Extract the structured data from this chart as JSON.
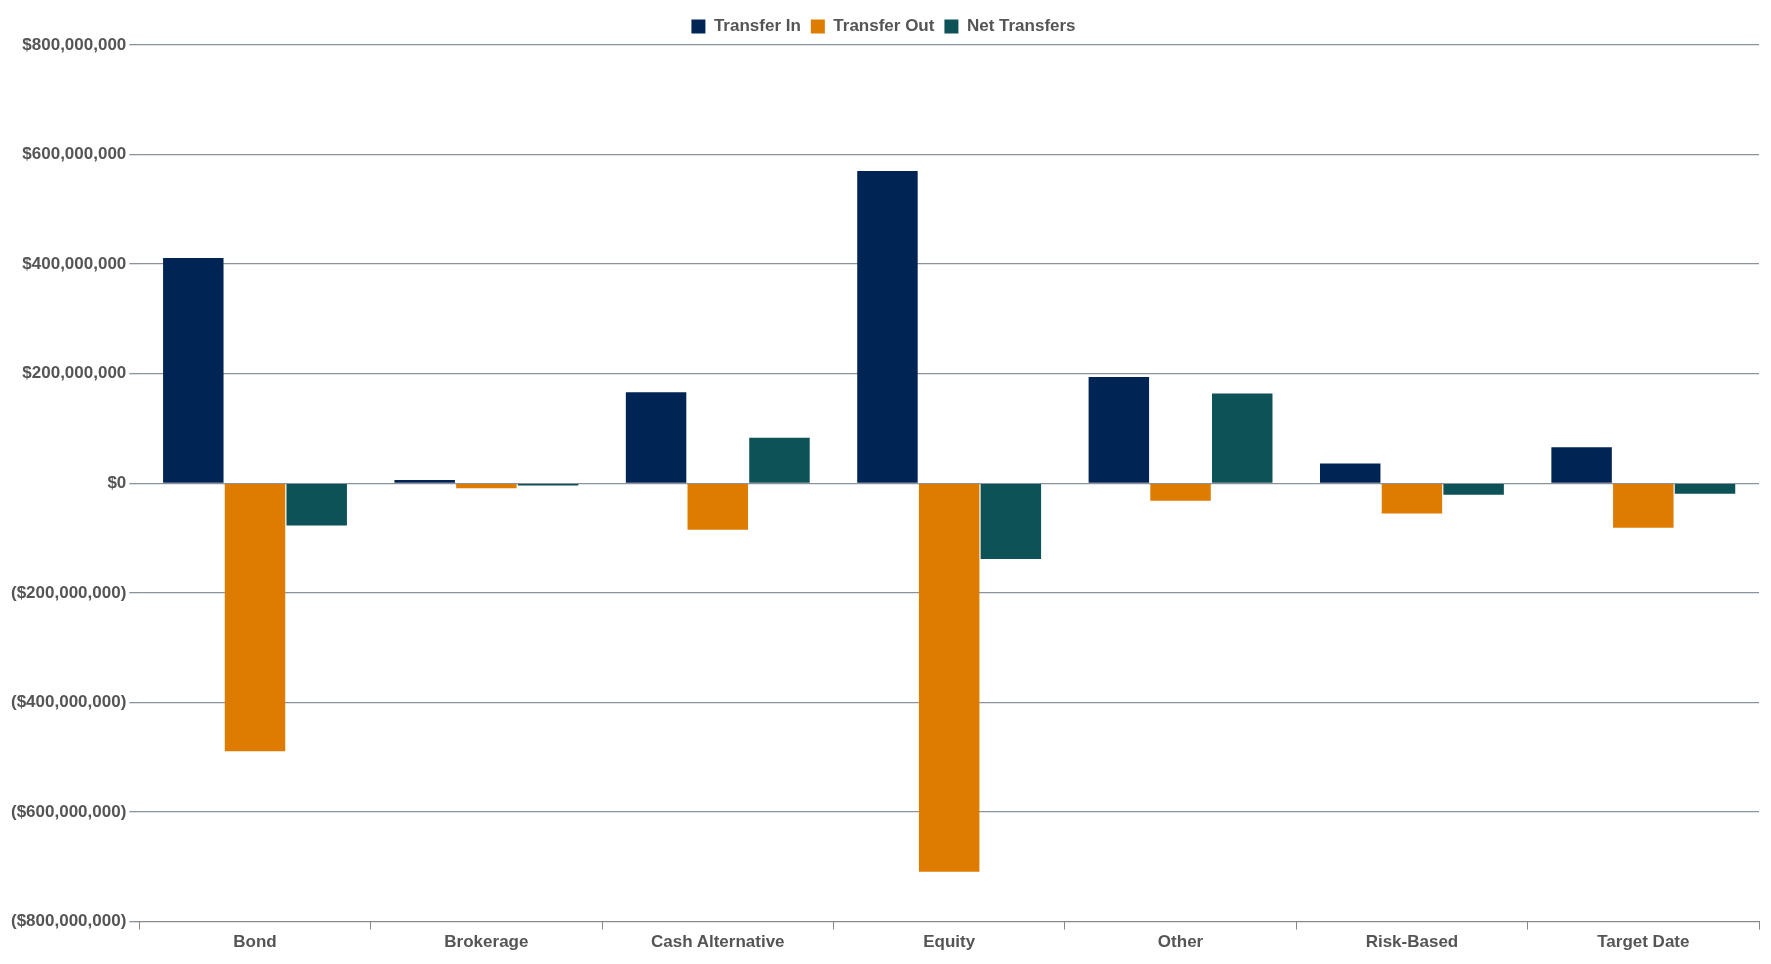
{
  "chart_data": {
    "type": "bar",
    "categories": [
      "Bond",
      "Brokerage",
      "Cash Alternative",
      "Equity",
      "Other",
      "Risk-Based",
      "Target Date"
    ],
    "series": [
      {
        "name": "Transfer In",
        "color": "#002554",
        "values": [
          411000000,
          6000000,
          166000000,
          570000000,
          194000000,
          36000000,
          66000000
        ]
      },
      {
        "name": "Transfer Out",
        "color": "#dd7c00",
        "values": [
          -489000000,
          -9000000,
          -85000000,
          -709000000,
          -32000000,
          -55000000,
          -81000000
        ]
      },
      {
        "name": "Net Transfers",
        "color": "#0d5257",
        "values": [
          -77000000,
          -4000000,
          83000000,
          -138000000,
          164000000,
          -21000000,
          -19000000
        ]
      }
    ],
    "ylim": [
      -800000000,
      800000000
    ],
    "yticks": [
      {
        "value": -800000000,
        "label": "($800,000,000)"
      },
      {
        "value": -600000000,
        "label": "($600,000,000)"
      },
      {
        "value": -400000000,
        "label": "($400,000,000)"
      },
      {
        "value": -200000000,
        "label": "($200,000,000)"
      },
      {
        "value": 0,
        "label": "$0"
      },
      {
        "value": 200000000,
        "label": "$200,000,000"
      },
      {
        "value": 400000000,
        "label": "$400,000,000"
      },
      {
        "value": 600000000,
        "label": "$600,000,000"
      },
      {
        "value": 800000000,
        "label": "$800,000,000"
      }
    ],
    "grid": "y",
    "legend": "top"
  }
}
